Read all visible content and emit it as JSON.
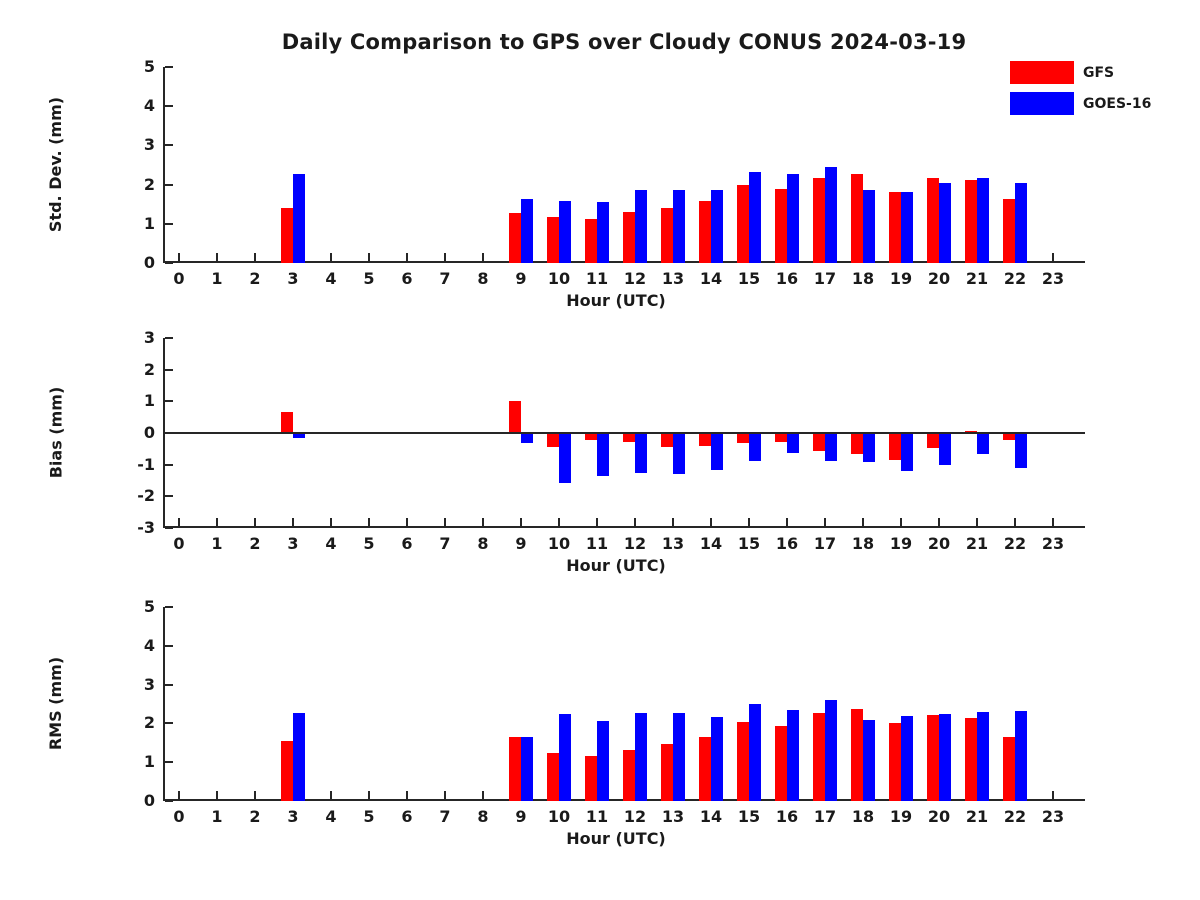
{
  "title": "Daily Comparison to GPS over Cloudy CONUS 2024-03-19",
  "legend": {
    "items": [
      {
        "label": "GFS",
        "color": "#ff0000"
      },
      {
        "label": "GOES-16",
        "color": "#0000ff"
      }
    ]
  },
  "chart_data": [
    {
      "type": "bar",
      "id": "std-dev",
      "ylabel": "Std. Dev. (mm)",
      "xlabel": "Hour (UTC)",
      "ylim": [
        0,
        5
      ],
      "yticks": [
        0,
        1,
        2,
        3,
        4,
        5
      ],
      "grid": false,
      "legend_position": "top-right",
      "categories": [
        0,
        1,
        2,
        3,
        4,
        5,
        6,
        7,
        8,
        9,
        10,
        11,
        12,
        13,
        14,
        15,
        16,
        17,
        18,
        19,
        20,
        21,
        22,
        23
      ],
      "series": [
        {
          "name": "GFS",
          "color": "#ff0000",
          "values": [
            null,
            null,
            null,
            1.4,
            null,
            null,
            null,
            null,
            null,
            1.28,
            1.17,
            1.12,
            1.31,
            1.41,
            1.58,
            2.0,
            1.9,
            2.17,
            2.27,
            1.81,
            2.16,
            2.13,
            1.63,
            null
          ]
        },
        {
          "name": "GOES-16",
          "color": "#0000ff",
          "values": [
            null,
            null,
            null,
            2.28,
            null,
            null,
            null,
            null,
            null,
            1.62,
            1.57,
            1.56,
            1.85,
            1.87,
            1.85,
            2.33,
            2.28,
            2.45,
            1.86,
            1.82,
            2.04,
            2.16,
            2.05,
            null
          ]
        }
      ]
    },
    {
      "type": "bar",
      "id": "bias",
      "ylabel": "Bias (mm)",
      "xlabel": "Hour (UTC)",
      "ylim": [
        -3,
        3
      ],
      "yticks": [
        3,
        2,
        1,
        0,
        -1,
        -2,
        -3
      ],
      "grid": false,
      "zero_line": true,
      "categories": [
        0,
        1,
        2,
        3,
        4,
        5,
        6,
        7,
        8,
        9,
        10,
        11,
        12,
        13,
        14,
        15,
        16,
        17,
        18,
        19,
        20,
        21,
        22,
        23
      ],
      "series": [
        {
          "name": "GFS",
          "color": "#ff0000",
          "values": [
            null,
            null,
            null,
            0.65,
            null,
            null,
            null,
            null,
            null,
            1.02,
            -0.45,
            -0.21,
            -0.27,
            -0.45,
            -0.42,
            -0.33,
            -0.28,
            -0.57,
            -0.65,
            -0.85,
            -0.46,
            0.07,
            -0.21,
            null
          ]
        },
        {
          "name": "GOES-16",
          "color": "#0000ff",
          "values": [
            null,
            null,
            null,
            -0.15,
            null,
            null,
            null,
            null,
            null,
            -0.31,
            -1.57,
            -1.36,
            -1.26,
            -1.29,
            -1.16,
            -0.89,
            -0.63,
            -0.87,
            -0.93,
            -1.2,
            -1.0,
            -0.66,
            -1.12,
            null
          ]
        }
      ]
    },
    {
      "type": "bar",
      "id": "rms",
      "ylabel": "RMS (mm)",
      "xlabel": "Hour (UTC)",
      "ylim": [
        0,
        5
      ],
      "yticks": [
        0,
        1,
        2,
        3,
        4,
        5
      ],
      "grid": false,
      "categories": [
        0,
        1,
        2,
        3,
        4,
        5,
        6,
        7,
        8,
        9,
        10,
        11,
        12,
        13,
        14,
        15,
        16,
        17,
        18,
        19,
        20,
        21,
        22,
        23
      ],
      "series": [
        {
          "name": "GFS",
          "color": "#ff0000",
          "values": [
            null,
            null,
            null,
            1.55,
            null,
            null,
            null,
            null,
            null,
            1.64,
            1.23,
            1.15,
            1.32,
            1.46,
            1.65,
            2.03,
            1.93,
            2.27,
            2.36,
            2.02,
            2.22,
            2.13,
            1.65,
            null
          ]
        },
        {
          "name": "GOES-16",
          "color": "#0000ff",
          "values": [
            null,
            null,
            null,
            2.28,
            null,
            null,
            null,
            null,
            null,
            1.64,
            2.23,
            2.06,
            2.26,
            2.26,
            2.16,
            2.49,
            2.34,
            2.61,
            2.1,
            2.19,
            2.25,
            2.3,
            2.32,
            null
          ]
        }
      ]
    }
  ]
}
